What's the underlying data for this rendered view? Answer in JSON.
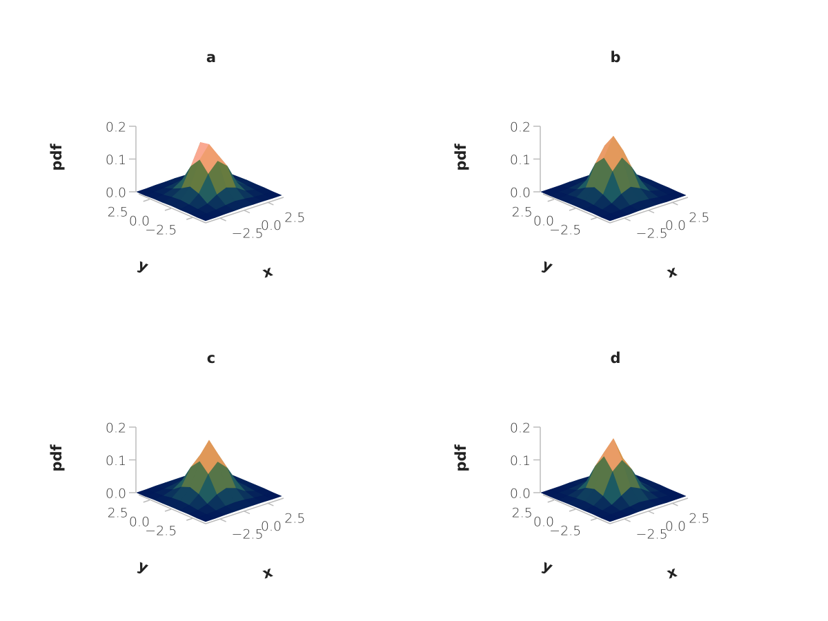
{
  "chart_data": [
    {
      "type": "surface",
      "title": "a",
      "xlabel": "x",
      "ylabel": "y",
      "zlabel": "pdf",
      "xlim": [
        -4,
        4
      ],
      "ylim": [
        -4,
        4
      ],
      "zlim": [
        0,
        0.2
      ],
      "xticks": [
        {
          "value": -2.5,
          "label": "−2.5"
        },
        {
          "value": 0,
          "label": "0.0"
        },
        2.5
      ],
      "yticks": [
        {
          "value": -2.5,
          "label": "−2.5"
        },
        {
          "value": 0,
          "label": "0.0"
        },
        2.5
      ],
      "zticks": [
        {
          "value": 0,
          "label": "0.0"
        },
        0.1,
        0.2
      ],
      "colormap": [
        "#011959",
        "#0f3d5e",
        "#1c5a62",
        "#3c6d56",
        "#687b3e",
        "#9d892b",
        "#d29343",
        "#f8a17b",
        "#fdb7bc",
        "#facccf"
      ],
      "x": [
        -4,
        -3,
        -2,
        -1,
        0,
        1,
        2,
        3,
        4
      ],
      "y": [
        -4,
        -3,
        -2,
        -1,
        0,
        1,
        2,
        3,
        4
      ],
      "z": [
        [
          0,
          0,
          0.001,
          0.001,
          0.002,
          0.001,
          0.001,
          0,
          0
        ],
        [
          0,
          0.001,
          0.003,
          0.007,
          0.01,
          0.007,
          0.003,
          0.001,
          0
        ],
        [
          0.001,
          0.003,
          0.01,
          0.028,
          0.04,
          0.03,
          0.011,
          0.004,
          0.001
        ],
        [
          0.001,
          0.006,
          0.03,
          0.08,
          0.11,
          0.085,
          0.026,
          0.007,
          0.001
        ],
        [
          0.002,
          0.009,
          0.04,
          0.112,
          0.15,
          0.105,
          0.038,
          0.01,
          0.002
        ],
        [
          0.001,
          0.007,
          0.024,
          0.082,
          0.145,
          0.078,
          0.027,
          0.006,
          0.001
        ],
        [
          0.001,
          0.003,
          0.012,
          0.03,
          0.037,
          0.026,
          0.009,
          0.003,
          0
        ],
        [
          0,
          0.001,
          0.003,
          0.006,
          0.01,
          0.006,
          0.003,
          0.001,
          0
        ],
        [
          0,
          0,
          0.001,
          0.001,
          0.002,
          0.001,
          0,
          0,
          0
        ]
      ]
    },
    {
      "type": "surface",
      "title": "b",
      "xlabel": "x",
      "ylabel": "y",
      "zlabel": "pdf",
      "xlim": [
        -4,
        4
      ],
      "ylim": [
        -4,
        4
      ],
      "zlim": [
        0,
        0.2
      ],
      "xticks": [
        {
          "value": -2.5,
          "label": "−2.5"
        },
        {
          "value": 0,
          "label": "0.0"
        },
        2.5
      ],
      "yticks": [
        {
          "value": -2.5,
          "label": "−2.5"
        },
        {
          "value": 0,
          "label": "0.0"
        },
        2.5
      ],
      "zticks": [
        {
          "value": 0,
          "label": "0.0"
        },
        0.1,
        0.2
      ],
      "colormap": [
        "#011959",
        "#0f3d5e",
        "#1c5a62",
        "#3c6d56",
        "#687b3e",
        "#9d892b",
        "#d29343",
        "#f8a17b",
        "#fdb7bc",
        "#facccf"
      ],
      "x": [
        -4,
        -3,
        -2,
        -1,
        0,
        1,
        2,
        3,
        4
      ],
      "y": [
        -4,
        -3,
        -2,
        -1,
        0,
        1,
        2,
        3,
        4
      ],
      "z": [
        [
          0,
          0,
          0,
          0.001,
          0.001,
          0.001,
          0,
          0,
          0
        ],
        [
          0,
          0.001,
          0.002,
          0.006,
          0.009,
          0.006,
          0.002,
          0.001,
          0
        ],
        [
          0.001,
          0.002,
          0.011,
          0.03,
          0.042,
          0.028,
          0.01,
          0.003,
          0.001
        ],
        [
          0.001,
          0.005,
          0.027,
          0.088,
          0.12,
          0.082,
          0.03,
          0.006,
          0.001
        ],
        [
          0.001,
          0.008,
          0.038,
          0.118,
          0.175,
          0.122,
          0.036,
          0.008,
          0.002
        ],
        [
          0.001,
          0.006,
          0.026,
          0.09,
          0.135,
          0.086,
          0.025,
          0.005,
          0.001
        ],
        [
          0,
          0.003,
          0.01,
          0.029,
          0.04,
          0.027,
          0.011,
          0.002,
          0
        ],
        [
          0,
          0.001,
          0.002,
          0.006,
          0.008,
          0.005,
          0.002,
          0.001,
          0
        ],
        [
          0,
          0,
          0,
          0.001,
          0.001,
          0.001,
          0,
          0,
          0
        ]
      ]
    },
    {
      "type": "surface",
      "title": "c",
      "xlabel": "x",
      "ylabel": "y",
      "zlabel": "pdf",
      "xlim": [
        -4,
        4
      ],
      "ylim": [
        -4,
        4
      ],
      "zlim": [
        0,
        0.2
      ],
      "xticks": [
        {
          "value": -2.5,
          "label": "−2.5"
        },
        {
          "value": 0,
          "label": "0.0"
        },
        2.5
      ],
      "yticks": [
        {
          "value": -2.5,
          "label": "−2.5"
        },
        {
          "value": 0,
          "label": "0.0"
        },
        2.5
      ],
      "zticks": [
        {
          "value": 0,
          "label": "0.0"
        },
        0.1,
        0.2
      ],
      "colormap": [
        "#011959",
        "#0f3d5e",
        "#1c5a62",
        "#3c6d56",
        "#687b3e",
        "#9d892b",
        "#d29343",
        "#f8a17b",
        "#fdb7bc",
        "#facccf"
      ],
      "x": [
        -4,
        -3,
        -2,
        -1,
        0,
        1,
        2,
        3,
        4
      ],
      "y": [
        -4,
        -3,
        -2,
        -1,
        0,
        1,
        2,
        3,
        4
      ],
      "z": [
        [
          0,
          0,
          0.001,
          0.001,
          0.001,
          0.001,
          0.001,
          0,
          0
        ],
        [
          0,
          0.001,
          0.003,
          0.007,
          0.009,
          0.007,
          0.003,
          0.001,
          0
        ],
        [
          0.001,
          0.003,
          0.012,
          0.031,
          0.041,
          0.031,
          0.012,
          0.003,
          0.001
        ],
        [
          0.001,
          0.007,
          0.031,
          0.082,
          0.11,
          0.082,
          0.031,
          0.007,
          0.001
        ],
        [
          0.001,
          0.009,
          0.041,
          0.11,
          0.165,
          0.11,
          0.041,
          0.009,
          0.001
        ],
        [
          0.001,
          0.007,
          0.031,
          0.082,
          0.11,
          0.082,
          0.031,
          0.007,
          0.001
        ],
        [
          0.001,
          0.003,
          0.012,
          0.031,
          0.041,
          0.031,
          0.012,
          0.003,
          0.001
        ],
        [
          0,
          0.001,
          0.003,
          0.007,
          0.009,
          0.007,
          0.003,
          0.001,
          0
        ],
        [
          0,
          0,
          0.001,
          0.001,
          0.001,
          0.001,
          0.001,
          0,
          0
        ]
      ]
    },
    {
      "type": "surface",
      "title": "d",
      "xlabel": "x",
      "ylabel": "y",
      "zlabel": "pdf",
      "xlim": [
        -4,
        4
      ],
      "ylim": [
        -4,
        4
      ],
      "zlim": [
        0,
        0.2
      ],
      "xticks": [
        {
          "value": -2.5,
          "label": "−2.5"
        },
        {
          "value": 0,
          "label": "0.0"
        },
        2.5
      ],
      "yticks": [
        {
          "value": -2.5,
          "label": "−2.5"
        },
        {
          "value": 0,
          "label": "0.0"
        },
        2.5
      ],
      "zticks": [
        {
          "value": 0,
          "label": "0.0"
        },
        0.1,
        0.2
      ],
      "colormap": [
        "#011959",
        "#0f3d5e",
        "#1c5a62",
        "#3c6d56",
        "#687b3e",
        "#9d892b",
        "#d29343",
        "#f8a17b",
        "#fdb7bc",
        "#facccf"
      ],
      "x": [
        -4,
        -3,
        -2,
        -1,
        0,
        1,
        2,
        3,
        4
      ],
      "y": [
        -4,
        -3,
        -2,
        -1,
        0,
        1,
        2,
        3,
        4
      ],
      "z": [
        [
          0,
          0,
          0,
          0.001,
          0.001,
          0.001,
          0,
          0,
          0
        ],
        [
          0,
          0.001,
          0.002,
          0.005,
          0.009,
          0.006,
          0.002,
          0,
          0
        ],
        [
          0.001,
          0.002,
          0.009,
          0.027,
          0.044,
          0.03,
          0.01,
          0.002,
          0
        ],
        [
          0.001,
          0.005,
          0.025,
          0.09,
          0.115,
          0.078,
          0.024,
          0.005,
          0.001
        ],
        [
          0.001,
          0.008,
          0.035,
          0.125,
          0.17,
          0.1,
          0.033,
          0.007,
          0.001
        ],
        [
          0.001,
          0.006,
          0.028,
          0.085,
          0.12,
          0.074,
          0.024,
          0.005,
          0.001
        ],
        [
          0,
          0.003,
          0.01,
          0.028,
          0.038,
          0.025,
          0.009,
          0.002,
          0
        ],
        [
          0,
          0.001,
          0.002,
          0.005,
          0.008,
          0.005,
          0.002,
          0,
          0
        ],
        [
          0,
          0,
          0,
          0.001,
          0.001,
          0,
          0,
          0,
          0
        ]
      ]
    }
  ]
}
